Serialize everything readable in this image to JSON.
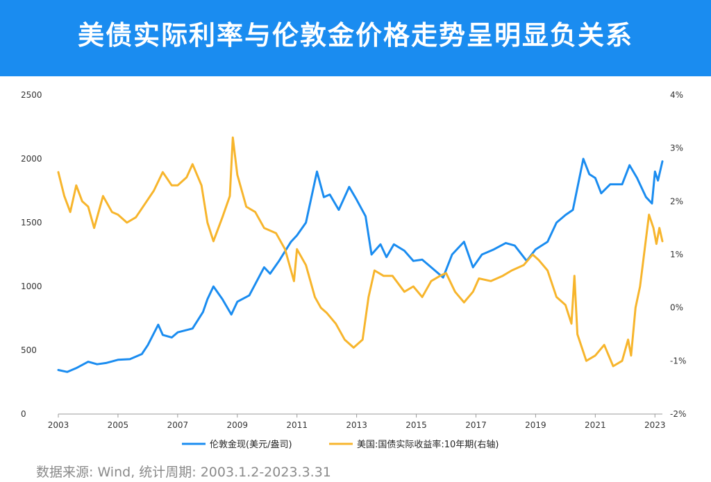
{
  "header": {
    "title": "美债实际利率与伦敦金价格走势呈明显负关系"
  },
  "source_note": "数据来源: Wind, 统计周期: 2003.1.2-2023.3.31",
  "colors": {
    "banner": "#1a8cf0",
    "gold_series": "#1a8cf0",
    "yield_series": "#f7b52c"
  },
  "chart_data": {
    "type": "line",
    "title": "美债实际利率与伦敦金价格走势呈明显负关系",
    "x_ticks": [
      "2003",
      "2005",
      "2007",
      "2009",
      "2011",
      "2013",
      "2015",
      "2017",
      "2019",
      "2021",
      "2023"
    ],
    "x_range": [
      2003,
      2023.25
    ],
    "y_left": {
      "range": [
        0,
        2500
      ],
      "ticks": [
        "2500",
        "2000",
        "1500",
        "1000",
        "500",
        "0"
      ]
    },
    "y_right": {
      "range": [
        -2,
        4
      ],
      "ticks": [
        "4%",
        "3%",
        "2%",
        "1%",
        "0%",
        "-1%",
        "-2%"
      ]
    },
    "legend_position": "bottom-center",
    "series": [
      {
        "name": "伦敦金现(美元/盎司)",
        "axis": "left",
        "color": "#1a8cf0",
        "points": [
          [
            2003.0,
            345
          ],
          [
            2003.3,
            330
          ],
          [
            2003.6,
            360
          ],
          [
            2004.0,
            410
          ],
          [
            2004.3,
            390
          ],
          [
            2004.6,
            400
          ],
          [
            2005.0,
            425
          ],
          [
            2005.4,
            430
          ],
          [
            2005.8,
            470
          ],
          [
            2006.0,
            540
          ],
          [
            2006.35,
            700
          ],
          [
            2006.5,
            620
          ],
          [
            2006.8,
            600
          ],
          [
            2007.0,
            640
          ],
          [
            2007.5,
            670
          ],
          [
            2007.85,
            800
          ],
          [
            2008.0,
            900
          ],
          [
            2008.2,
            1000
          ],
          [
            2008.5,
            900
          ],
          [
            2008.8,
            780
          ],
          [
            2009.0,
            880
          ],
          [
            2009.4,
            930
          ],
          [
            2009.9,
            1150
          ],
          [
            2010.1,
            1100
          ],
          [
            2010.4,
            1200
          ],
          [
            2010.8,
            1350
          ],
          [
            2011.0,
            1400
          ],
          [
            2011.3,
            1500
          ],
          [
            2011.67,
            1900
          ],
          [
            2011.9,
            1700
          ],
          [
            2012.1,
            1720
          ],
          [
            2012.4,
            1600
          ],
          [
            2012.75,
            1780
          ],
          [
            2013.0,
            1680
          ],
          [
            2013.3,
            1550
          ],
          [
            2013.5,
            1250
          ],
          [
            2013.8,
            1330
          ],
          [
            2014.0,
            1230
          ],
          [
            2014.25,
            1330
          ],
          [
            2014.6,
            1280
          ],
          [
            2014.9,
            1200
          ],
          [
            2015.2,
            1210
          ],
          [
            2015.5,
            1150
          ],
          [
            2015.9,
            1070
          ],
          [
            2016.2,
            1250
          ],
          [
            2016.6,
            1350
          ],
          [
            2016.9,
            1150
          ],
          [
            2017.2,
            1250
          ],
          [
            2017.6,
            1290
          ],
          [
            2018.0,
            1340
          ],
          [
            2018.3,
            1320
          ],
          [
            2018.7,
            1200
          ],
          [
            2019.0,
            1290
          ],
          [
            2019.4,
            1350
          ],
          [
            2019.7,
            1500
          ],
          [
            2020.0,
            1560
          ],
          [
            2020.25,
            1600
          ],
          [
            2020.6,
            2000
          ],
          [
            2020.8,
            1880
          ],
          [
            2021.0,
            1850
          ],
          [
            2021.2,
            1730
          ],
          [
            2021.5,
            1800
          ],
          [
            2021.9,
            1800
          ],
          [
            2022.15,
            1950
          ],
          [
            2022.4,
            1850
          ],
          [
            2022.7,
            1700
          ],
          [
            2022.9,
            1650
          ],
          [
            2023.0,
            1900
          ],
          [
            2023.1,
            1830
          ],
          [
            2023.25,
            1980
          ]
        ]
      },
      {
        "name": "美国:国债实际收益率:10年期(右轴)",
        "axis": "right",
        "color": "#f7b52c",
        "points": [
          [
            2003.0,
            2.55
          ],
          [
            2003.2,
            2.1
          ],
          [
            2003.4,
            1.8
          ],
          [
            2003.6,
            2.3
          ],
          [
            2003.8,
            2.0
          ],
          [
            2004.0,
            1.9
          ],
          [
            2004.2,
            1.5
          ],
          [
            2004.5,
            2.1
          ],
          [
            2004.8,
            1.8
          ],
          [
            2005.0,
            1.75
          ],
          [
            2005.3,
            1.6
          ],
          [
            2005.6,
            1.7
          ],
          [
            2005.9,
            1.95
          ],
          [
            2006.2,
            2.2
          ],
          [
            2006.5,
            2.55
          ],
          [
            2006.8,
            2.3
          ],
          [
            2007.0,
            2.3
          ],
          [
            2007.3,
            2.45
          ],
          [
            2007.5,
            2.7
          ],
          [
            2007.8,
            2.3
          ],
          [
            2008.0,
            1.6
          ],
          [
            2008.2,
            1.25
          ],
          [
            2008.5,
            1.7
          ],
          [
            2008.75,
            2.1
          ],
          [
            2008.85,
            3.2
          ],
          [
            2009.0,
            2.5
          ],
          [
            2009.3,
            1.9
          ],
          [
            2009.6,
            1.8
          ],
          [
            2009.9,
            1.5
          ],
          [
            2010.3,
            1.4
          ],
          [
            2010.6,
            1.1
          ],
          [
            2010.9,
            0.5
          ],
          [
            2011.0,
            1.1
          ],
          [
            2011.3,
            0.8
          ],
          [
            2011.6,
            0.2
          ],
          [
            2011.8,
            0.0
          ],
          [
            2012.0,
            -0.1
          ],
          [
            2012.3,
            -0.3
          ],
          [
            2012.6,
            -0.6
          ],
          [
            2012.9,
            -0.75
          ],
          [
            2013.2,
            -0.6
          ],
          [
            2013.4,
            0.2
          ],
          [
            2013.6,
            0.7
          ],
          [
            2013.9,
            0.6
          ],
          [
            2014.2,
            0.6
          ],
          [
            2014.6,
            0.3
          ],
          [
            2014.9,
            0.4
          ],
          [
            2015.2,
            0.2
          ],
          [
            2015.5,
            0.5
          ],
          [
            2015.8,
            0.6
          ],
          [
            2016.0,
            0.65
          ],
          [
            2016.3,
            0.3
          ],
          [
            2016.6,
            0.1
          ],
          [
            2016.9,
            0.3
          ],
          [
            2017.1,
            0.55
          ],
          [
            2017.5,
            0.5
          ],
          [
            2017.9,
            0.6
          ],
          [
            2018.2,
            0.7
          ],
          [
            2018.6,
            0.8
          ],
          [
            2018.9,
            1.0
          ],
          [
            2019.1,
            0.9
          ],
          [
            2019.4,
            0.7
          ],
          [
            2019.7,
            0.2
          ],
          [
            2020.0,
            0.05
          ],
          [
            2020.2,
            -0.3
          ],
          [
            2020.3,
            0.6
          ],
          [
            2020.4,
            -0.5
          ],
          [
            2020.7,
            -1.0
          ],
          [
            2021.0,
            -0.9
          ],
          [
            2021.3,
            -0.7
          ],
          [
            2021.6,
            -1.1
          ],
          [
            2021.9,
            -1.0
          ],
          [
            2022.1,
            -0.6
          ],
          [
            2022.2,
            -0.9
          ],
          [
            2022.35,
            0.0
          ],
          [
            2022.5,
            0.4
          ],
          [
            2022.7,
            1.3
          ],
          [
            2022.8,
            1.75
          ],
          [
            2022.95,
            1.5
          ],
          [
            2023.05,
            1.2
          ],
          [
            2023.15,
            1.5
          ],
          [
            2023.25,
            1.25
          ]
        ]
      }
    ]
  }
}
